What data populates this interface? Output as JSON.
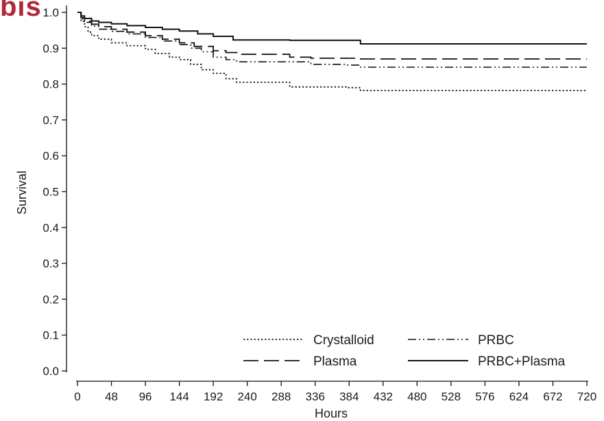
{
  "brand_text": "bis",
  "colors": {
    "brand": "#b0283a",
    "line": "#111111"
  },
  "chart_data": {
    "type": "line",
    "title": "",
    "xlabel": "Hours",
    "ylabel": "Survival",
    "xlim": [
      0,
      720
    ],
    "ylim": [
      0,
      1.0
    ],
    "x_ticks": [
      0,
      48,
      96,
      144,
      192,
      240,
      288,
      336,
      384,
      432,
      480,
      528,
      576,
      624,
      672,
      720
    ],
    "y_ticks": [
      0.0,
      0.1,
      0.2,
      0.3,
      0.4,
      0.5,
      0.6,
      0.7,
      0.8,
      0.9,
      1.0
    ],
    "y_tick_labels": [
      "0.0",
      "0.1",
      "0.2",
      "0.3",
      "0.4",
      "0.5",
      "0.6",
      "0.7",
      "0.8",
      "0.9",
      "1.0"
    ],
    "grid": false,
    "legend_position": "bottom-right",
    "series": [
      {
        "name": "Crystalloid",
        "dash": "dotted",
        "x": [
          0,
          5,
          10,
          15,
          20,
          30,
          48,
          70,
          96,
          110,
          130,
          144,
          160,
          175,
          192,
          210,
          225,
          290,
          300,
          380,
          400,
          720
        ],
        "y": [
          1.0,
          0.975,
          0.96,
          0.945,
          0.935,
          0.925,
          0.915,
          0.907,
          0.897,
          0.885,
          0.875,
          0.868,
          0.855,
          0.84,
          0.83,
          0.815,
          0.805,
          0.805,
          0.792,
          0.79,
          0.782,
          0.782
        ]
      },
      {
        "name": "PRBC",
        "dash": "dash-dot",
        "x": [
          0,
          5,
          10,
          20,
          30,
          48,
          70,
          96,
          120,
          144,
          160,
          175,
          192,
          210,
          225,
          300,
          330,
          380,
          400,
          720
        ],
        "y": [
          1.0,
          0.982,
          0.972,
          0.962,
          0.953,
          0.947,
          0.94,
          0.93,
          0.92,
          0.91,
          0.9,
          0.89,
          0.875,
          0.868,
          0.862,
          0.862,
          0.855,
          0.853,
          0.847,
          0.847
        ]
      },
      {
        "name": "Plasma",
        "dash": "long-dash",
        "x": [
          0,
          5,
          10,
          20,
          30,
          48,
          70,
          96,
          120,
          144,
          165,
          192,
          210,
          230,
          300,
          330,
          400,
          720
        ],
        "y": [
          1.0,
          0.985,
          0.975,
          0.967,
          0.96,
          0.953,
          0.945,
          0.935,
          0.925,
          0.915,
          0.905,
          0.893,
          0.888,
          0.883,
          0.875,
          0.872,
          0.87,
          0.87
        ]
      },
      {
        "name": "PRBC+Plasma",
        "dash": "solid",
        "x": [
          0,
          5,
          10,
          20,
          30,
          48,
          70,
          96,
          120,
          144,
          170,
          192,
          220,
          300,
          400,
          720
        ],
        "y": [
          1.0,
          0.99,
          0.983,
          0.976,
          0.972,
          0.968,
          0.963,
          0.958,
          0.953,
          0.948,
          0.94,
          0.933,
          0.923,
          0.922,
          0.912,
          0.912
        ]
      }
    ]
  }
}
